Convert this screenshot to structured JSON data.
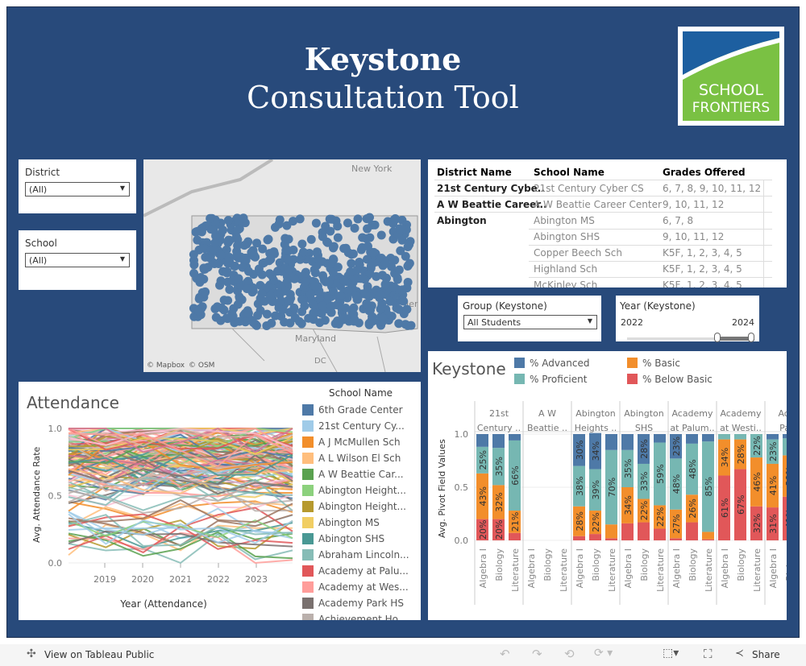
{
  "header": {
    "title_line1": "Keystone",
    "title_line2": "Consultation  Tool",
    "logo_text_1": "SCHOOL",
    "logo_text_2": "FRONTIERS"
  },
  "filters": {
    "district_label": "District",
    "district_value": "(All)",
    "school_label": "School",
    "school_value": "(All)",
    "group_label": "Group (Keystone)",
    "group_value": "All Students",
    "year_label": "Year (Keystone)",
    "year_min": "2022",
    "year_max": "2024"
  },
  "map": {
    "labels": [
      "New York",
      "Maryland",
      "DC",
      "Jer"
    ],
    "credit1": "© Mapbox",
    "credit2": "© OSM"
  },
  "table": {
    "headers": [
      "District Name",
      "School Name",
      "Grades Offered"
    ],
    "rows": [
      [
        "21st Century Cybe..",
        "21st Century Cyber CS",
        "6, 7, 8, 9, 10, 11, 12"
      ],
      [
        "A W Beattie Career..",
        "A W Beattie Career Center",
        "9, 10, 11, 12"
      ],
      [
        "Abington",
        "Abington MS",
        "6, 7, 8"
      ],
      [
        "",
        "Abington SHS",
        "9, 10, 11, 12"
      ],
      [
        "",
        "Copper Beech Sch",
        "K5F, 1, 2, 3, 4, 5"
      ],
      [
        "",
        "Highland Sch",
        "K5F, 1, 2, 3, 4, 5"
      ],
      [
        "",
        "McKinley Sch",
        "K5F, 1, 2, 3, 4, 5"
      ]
    ]
  },
  "attendance": {
    "title": "Attendance",
    "ylabel": "Avg. Attendance Rate",
    "xlabel": "Year (Attendance)",
    "yticks": [
      "1.0",
      "0.5",
      "0.0"
    ],
    "xticks": [
      "2019",
      "2020",
      "2021",
      "2022",
      "2023"
    ],
    "legend_title": "School Name",
    "legend": [
      {
        "name": "6th Grade Center",
        "color": "#4e79a7"
      },
      {
        "name": "21st Century Cy...",
        "color": "#a0cbe8"
      },
      {
        "name": "A J McMullen Sch",
        "color": "#f28e2b"
      },
      {
        "name": "A L Wilson El Sch",
        "color": "#ffbe7d"
      },
      {
        "name": "A W Beattie Car...",
        "color": "#59a14f"
      },
      {
        "name": "Abington Height...",
        "color": "#8cd17d"
      },
      {
        "name": "Abington Height...",
        "color": "#b6992d"
      },
      {
        "name": "Abington MS",
        "color": "#f1ce63"
      },
      {
        "name": "Abington SHS",
        "color": "#499894"
      },
      {
        "name": "Abraham Lincoln...",
        "color": "#86bcb6"
      },
      {
        "name": "Academy at Palu...",
        "color": "#e15759"
      },
      {
        "name": "Academy at Wes...",
        "color": "#ff9d9a"
      },
      {
        "name": "Academy Park HS",
        "color": "#79706e"
      },
      {
        "name": "Achievement Ho...",
        "color": "#bab0ac"
      }
    ]
  },
  "chart_data": {
    "type": "bar",
    "title": "Keystone",
    "ylabel": "Avg. Pivot Field Values",
    "ylim": [
      0,
      1
    ],
    "yticks": [
      "1.0",
      "0.5",
      "0.0"
    ],
    "legend": [
      {
        "name": "% Advanced",
        "color": "#4e79a7"
      },
      {
        "name": "% Basic",
        "color": "#f28e2b"
      },
      {
        "name": "% Proficient",
        "color": "#76b7b2"
      },
      {
        "name": "% Below Basic",
        "color": "#e15759"
      }
    ],
    "stack_order": [
      "% Below Basic",
      "% Basic",
      "% Proficient",
      "% Advanced"
    ],
    "subjects": [
      "Algebra I",
      "Biology",
      "Literature"
    ],
    "groups": [
      {
        "name": [
          "21st",
          "Century .."
        ],
        "bars": [
          [
            0.2,
            0.43,
            0.25,
            0.12
          ],
          [
            0.2,
            0.32,
            0.35,
            0.13
          ],
          [
            0.07,
            0.21,
            0.66,
            0.06
          ]
        ],
        "labels": [
          [
            "20%",
            "43%",
            "25%",
            ""
          ],
          [
            "20%",
            "32%",
            "35%",
            ""
          ],
          [
            "",
            "21%",
            "66%",
            ""
          ]
        ]
      },
      {
        "name": [
          "A W",
          "Beattie .."
        ],
        "bars": [],
        "labels": []
      },
      {
        "name": [
          "Abington",
          "Heights .."
        ],
        "bars": [
          [
            0.04,
            0.28,
            0.38,
            0.3
          ],
          [
            0.06,
            0.22,
            0.39,
            0.34
          ],
          [
            0.02,
            0.13,
            0.7,
            0.15
          ]
        ],
        "labels": [
          [
            "",
            "28%",
            "38%",
            "30%"
          ],
          [
            "",
            "22%",
            "39%",
            "34%"
          ],
          [
            "",
            "",
            "70%",
            ""
          ]
        ]
      },
      {
        "name": [
          "Abington",
          "SHS"
        ],
        "bars": [
          [
            0.16,
            0.34,
            0.35,
            0.15
          ],
          [
            0.17,
            0.22,
            0.33,
            0.28
          ],
          [
            0.11,
            0.22,
            0.59,
            0.08
          ]
        ],
        "labels": [
          [
            "",
            "34%",
            "35%",
            ""
          ],
          [
            "",
            "22%",
            "33%",
            "28%"
          ],
          [
            "",
            "22%",
            "59%",
            ""
          ]
        ]
      },
      {
        "name": [
          "Academy",
          "at Palum.."
        ],
        "bars": [
          [
            0.02,
            0.27,
            0.48,
            0.23
          ],
          [
            0.17,
            0.26,
            0.48,
            0.09
          ],
          [
            0.01,
            0.07,
            0.85,
            0.07
          ]
        ],
        "labels": [
          [
            "",
            "27%",
            "48%",
            "23%"
          ],
          [
            "",
            "26%",
            "48%",
            ""
          ],
          [
            "",
            "",
            "85%",
            ""
          ]
        ]
      },
      {
        "name": [
          "Academy",
          "at Westi.."
        ],
        "bars": [
          [
            0.61,
            0.34,
            0.05,
            0
          ],
          [
            0.67,
            0.28,
            0.05,
            0
          ],
          [
            0.32,
            0.46,
            0.22,
            0
          ]
        ],
        "labels": [
          [
            "61%",
            "34%",
            "",
            ""
          ],
          [
            "67%",
            "28%",
            "",
            ""
          ],
          [
            "32%",
            "46%",
            "22%",
            ""
          ]
        ]
      },
      {
        "name": [
          "Acad",
          "Park"
        ],
        "bars": [
          [
            0.31,
            0.41,
            0.23,
            0.05
          ],
          [
            0.41,
            0.39,
            0.16,
            0.04
          ]
        ],
        "labels": [
          [
            "31%",
            "41%",
            "23%",
            ""
          ],
          [
            "41%",
            "39%",
            "",
            ""
          ]
        ]
      }
    ]
  },
  "footer": {
    "view_label": "View on Tableau Public",
    "share_label": "Share"
  }
}
